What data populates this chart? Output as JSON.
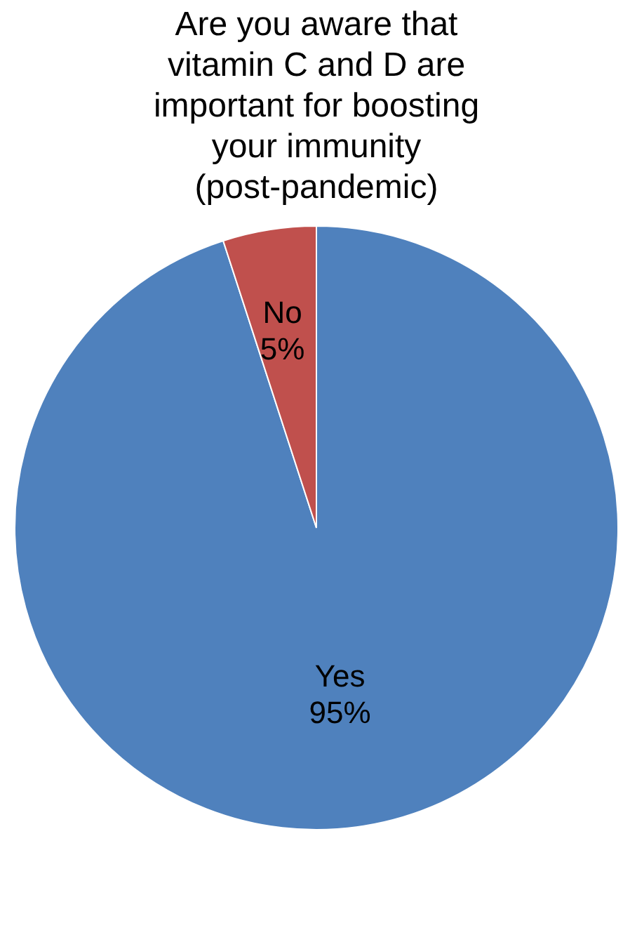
{
  "chart_data": {
    "type": "pie",
    "title": "Are you aware that vitamin C and D are important for boosting your immunity (post-pandemic)",
    "categories": [
      "Yes",
      "No"
    ],
    "values": [
      95,
      5
    ],
    "colors": [
      "#4f81bd",
      "#c0504d"
    ],
    "value_labels": [
      "95%",
      "5%"
    ],
    "legend": false
  }
}
